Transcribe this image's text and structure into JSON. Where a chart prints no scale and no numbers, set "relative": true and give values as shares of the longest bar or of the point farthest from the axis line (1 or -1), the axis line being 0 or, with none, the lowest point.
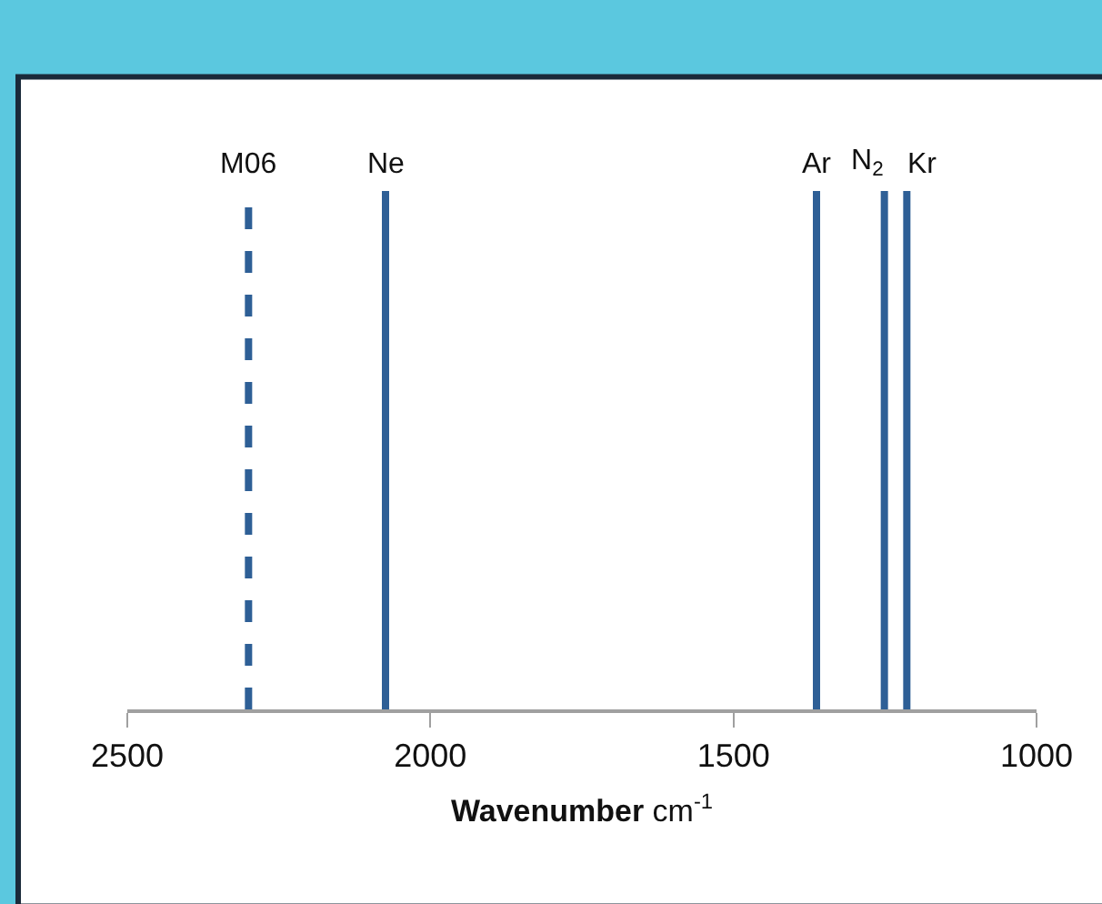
{
  "chart_data": {
    "type": "line",
    "relative": true,
    "xlabel": "Wavenumber cm$^{-1}$",
    "xlim": [
      2500,
      1000
    ],
    "xticks": [
      2500,
      2000,
      1500,
      1000
    ],
    "legend": false,
    "marker": "none",
    "tick_labels": "x",
    "series": [
      {
        "name": "M06",
        "color": "#2e5f96",
        "x": [
          2300,
          2300
        ],
        "values": [
          0,
          1
        ],
        "line_style": "dashed"
      },
      {
        "name": "Ne",
        "color": "#2e5f96",
        "x": [
          2074,
          2074
        ],
        "values": [
          0,
          1
        ],
        "line_style": "solid"
      },
      {
        "name": "Ar",
        "color": "#2e5f96",
        "x": [
          1363,
          1363
        ],
        "values": [
          0,
          1
        ],
        "line_style": "solid"
      },
      {
        "name": "N$_{2}$",
        "color": "#2e5f96",
        "x": [
          1251,
          1251
        ],
        "values": [
          0,
          1
        ],
        "line_style": "solid"
      },
      {
        "name": "Kr",
        "color": "#2e5f96",
        "x": [
          1214,
          1214
        ],
        "values": [
          0,
          1
        ],
        "line_style": "solid"
      }
    ]
  }
}
